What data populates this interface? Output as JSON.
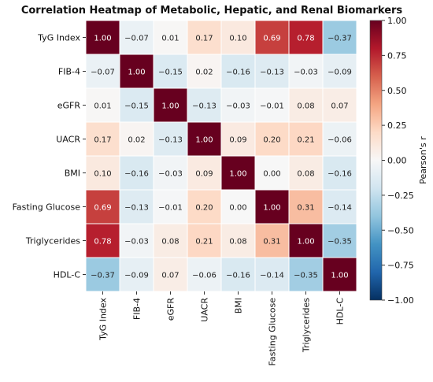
{
  "chart_data": {
    "type": "heatmap",
    "title": "Correlation Heatmap of Metabolic, Hepatic, and Renal Biomarkers",
    "row_labels": [
      "TyG Index",
      "FIB-4",
      "eGFR",
      "UACR",
      "BMI",
      "Fasting Glucose",
      "Triglycerides",
      "HDL-C"
    ],
    "col_labels": [
      "TyG Index",
      "FIB-4",
      "eGFR",
      "UACR",
      "BMI",
      "Fasting Glucose",
      "Triglycerides",
      "HDL-C"
    ],
    "values": [
      [
        1.0,
        -0.07,
        0.01,
        0.17,
        0.1,
        0.69,
        0.78,
        -0.37
      ],
      [
        -0.07,
        1.0,
        -0.15,
        0.02,
        -0.16,
        -0.13,
        -0.03,
        -0.09
      ],
      [
        0.01,
        -0.15,
        1.0,
        -0.13,
        -0.03,
        -0.01,
        0.08,
        0.07
      ],
      [
        0.17,
        0.02,
        -0.13,
        1.0,
        0.09,
        0.2,
        0.21,
        -0.06
      ],
      [
        0.1,
        -0.16,
        -0.03,
        0.09,
        1.0,
        0.0,
        0.08,
        -0.16
      ],
      [
        0.69,
        -0.13,
        -0.01,
        0.2,
        0.0,
        1.0,
        0.31,
        -0.14
      ],
      [
        0.78,
        -0.03,
        0.08,
        0.21,
        0.08,
        0.31,
        1.0,
        -0.35
      ],
      [
        -0.37,
        -0.09,
        0.07,
        -0.06,
        -0.16,
        -0.14,
        -0.35,
        1.0
      ]
    ],
    "value_format": "2-decimals",
    "colormap": "RdBu_r",
    "vmin": -1.0,
    "vmax": 1.0,
    "colorbar": {
      "label": "Pearson's r",
      "ticks": [
        1.0,
        0.75,
        0.5,
        0.25,
        0.0,
        -0.25,
        -0.5,
        -0.75,
        -1.0
      ]
    },
    "colors": {
      "grid_line": "#ffffff",
      "text_dark": "#222222",
      "text_light": "#ffffff"
    }
  }
}
